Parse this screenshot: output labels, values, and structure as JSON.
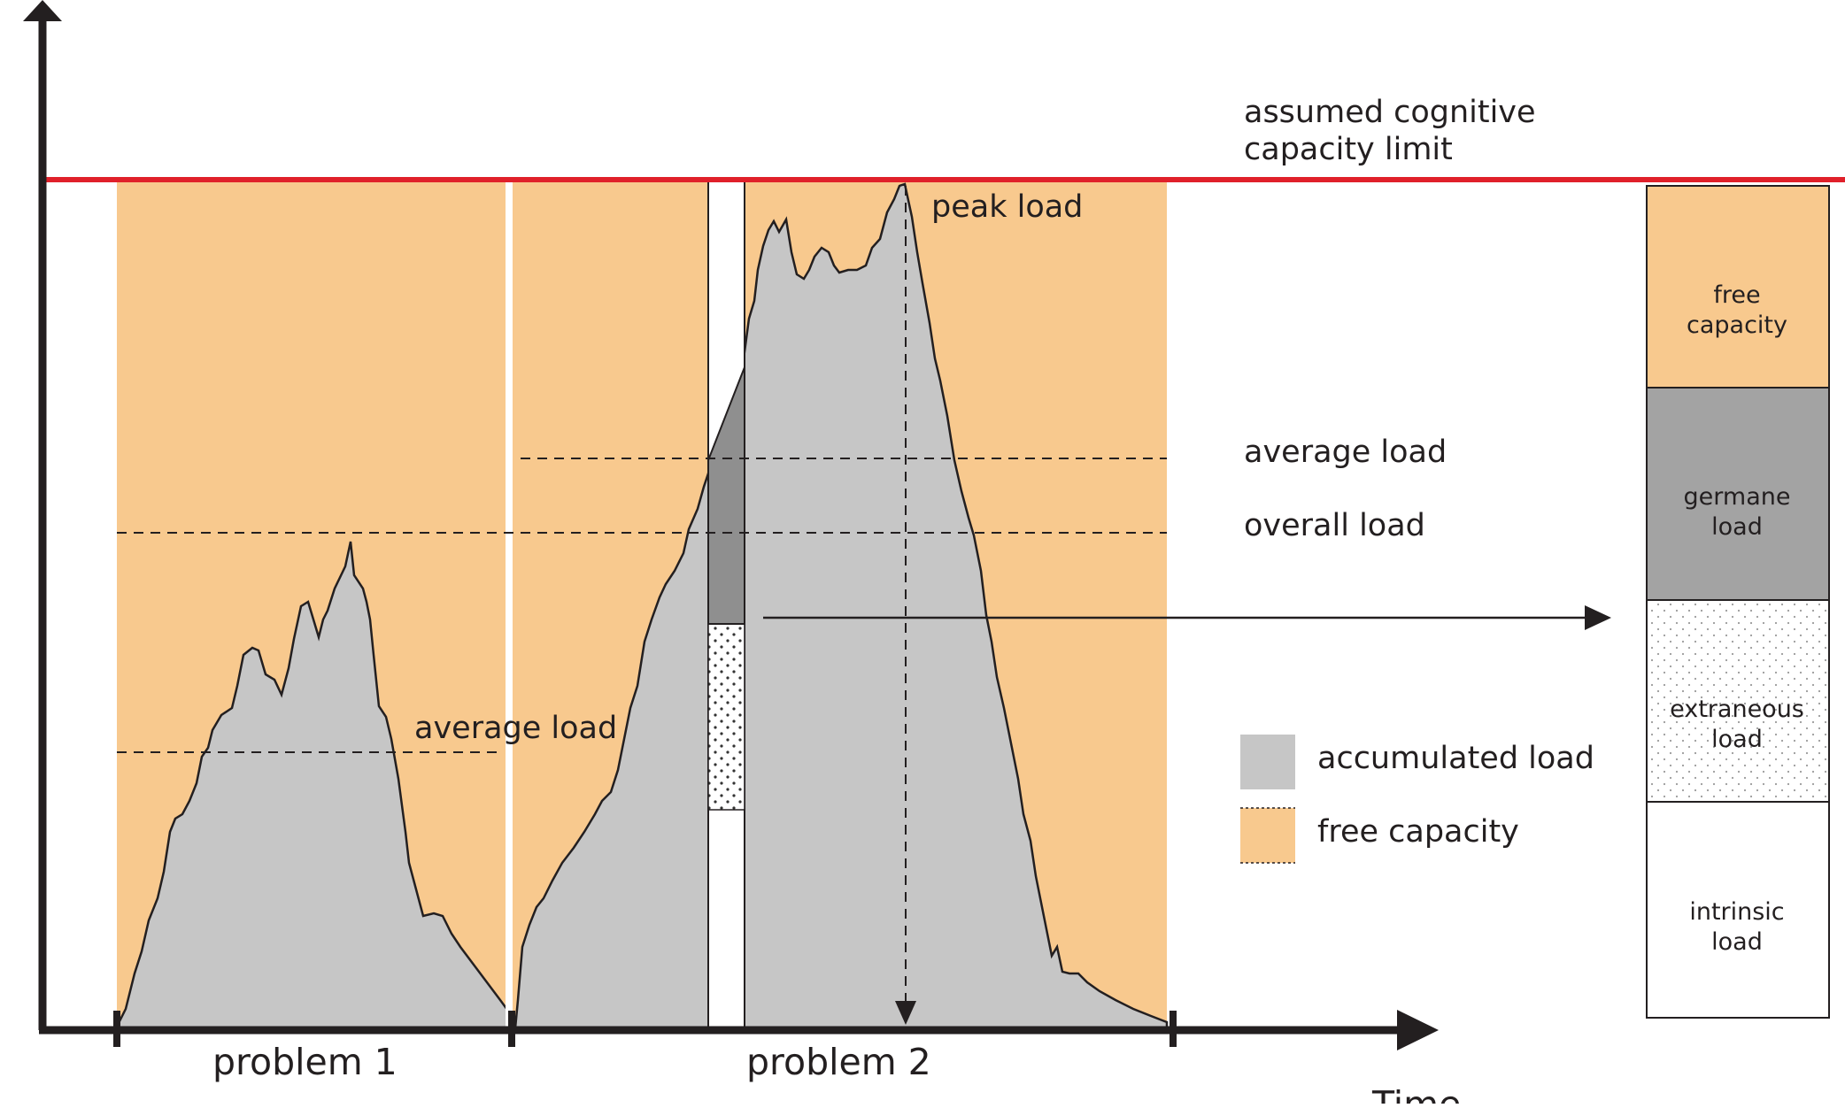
{
  "labels": {
    "capacity_limit_line1": "assumed cognitive",
    "capacity_limit_line2": "capacity limit",
    "peak_load": "peak load",
    "average_load_problem2": "average load",
    "overall_load": "overall load",
    "average_load_problem1": "average load",
    "problem_1": "problem 1",
    "problem_2": "problem 2",
    "time_axis": "Time"
  },
  "legend": [
    {
      "label": "accumulated load",
      "swatch": "#c6c6c6"
    },
    {
      "label": "free capacity",
      "swatch": "#f8c98e"
    }
  ],
  "load_bar": [
    {
      "line1": "free",
      "line2": "capacity",
      "fill": "#f8c98e"
    },
    {
      "line1": "germane",
      "line2": "load",
      "fill": "#a3a3a3"
    },
    {
      "line1": "extraneous",
      "line2": "load",
      "fill": "dotted"
    },
    {
      "line1": "intrinsic",
      "line2": "load",
      "fill": "#ffffff"
    }
  ],
  "colors": {
    "capacity_limit": "#e0202a",
    "free_capacity": "#f8c98e",
    "accumulated_load": "#c6c6c6",
    "germane_load": "#8f8f8f",
    "axis": "#231f20"
  }
}
